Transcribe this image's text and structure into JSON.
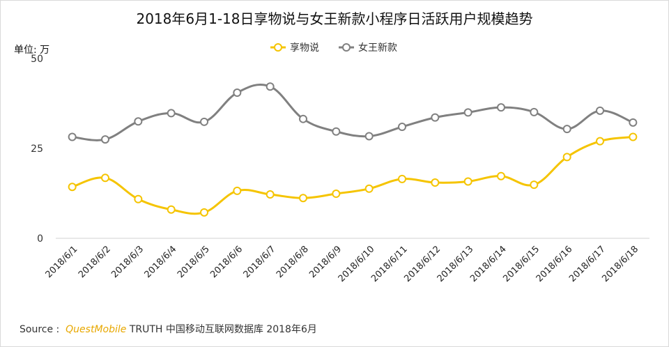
{
  "chart_data": {
    "type": "line",
    "title": "2018年6月1-18日享物说与女王新款小程序日活跃用户规模趋势",
    "unit_label": "单位: 万",
    "xlabel": "",
    "ylabel": "",
    "ylim": [
      0,
      50
    ],
    "yticks": [
      "0",
      "25",
      "50"
    ],
    "grid": false,
    "legend_position": "top-center",
    "categories": [
      "2018/6/1",
      "2018/6/2",
      "2018/6/3",
      "2018/6/4",
      "2018/6/5",
      "2018/6/6",
      "2018/6/7",
      "2018/6/8",
      "2018/6/9",
      "2018/6/10",
      "2018/6/11",
      "2018/6/12",
      "2018/6/13",
      "2018/6/14",
      "2018/6/15",
      "2018/6/16",
      "2018/6/17",
      "2018/6/18"
    ],
    "series": [
      {
        "name": "享物说",
        "color": "#f5c400",
        "values": [
          14.3,
          16.8,
          10.9,
          8.0,
          7.2,
          13.2,
          12.2,
          11.2,
          12.4,
          13.8,
          16.5,
          15.5,
          15.8,
          17.3,
          14.9,
          22.6,
          27.0,
          28.2
        ]
      },
      {
        "name": "女王新款",
        "color": "#808080",
        "values": [
          28.2,
          27.5,
          32.5,
          34.8,
          32.4,
          40.5,
          42.2,
          33.2,
          29.7,
          28.4,
          31.0,
          33.6,
          35.0,
          36.4,
          35.1,
          30.4,
          35.5,
          32.2
        ]
      }
    ]
  },
  "source": {
    "prefix": "Source :  ",
    "brand": "QuestMobile",
    "rest": " TRUTH 中国移动互联网数据库 2018年6月"
  }
}
